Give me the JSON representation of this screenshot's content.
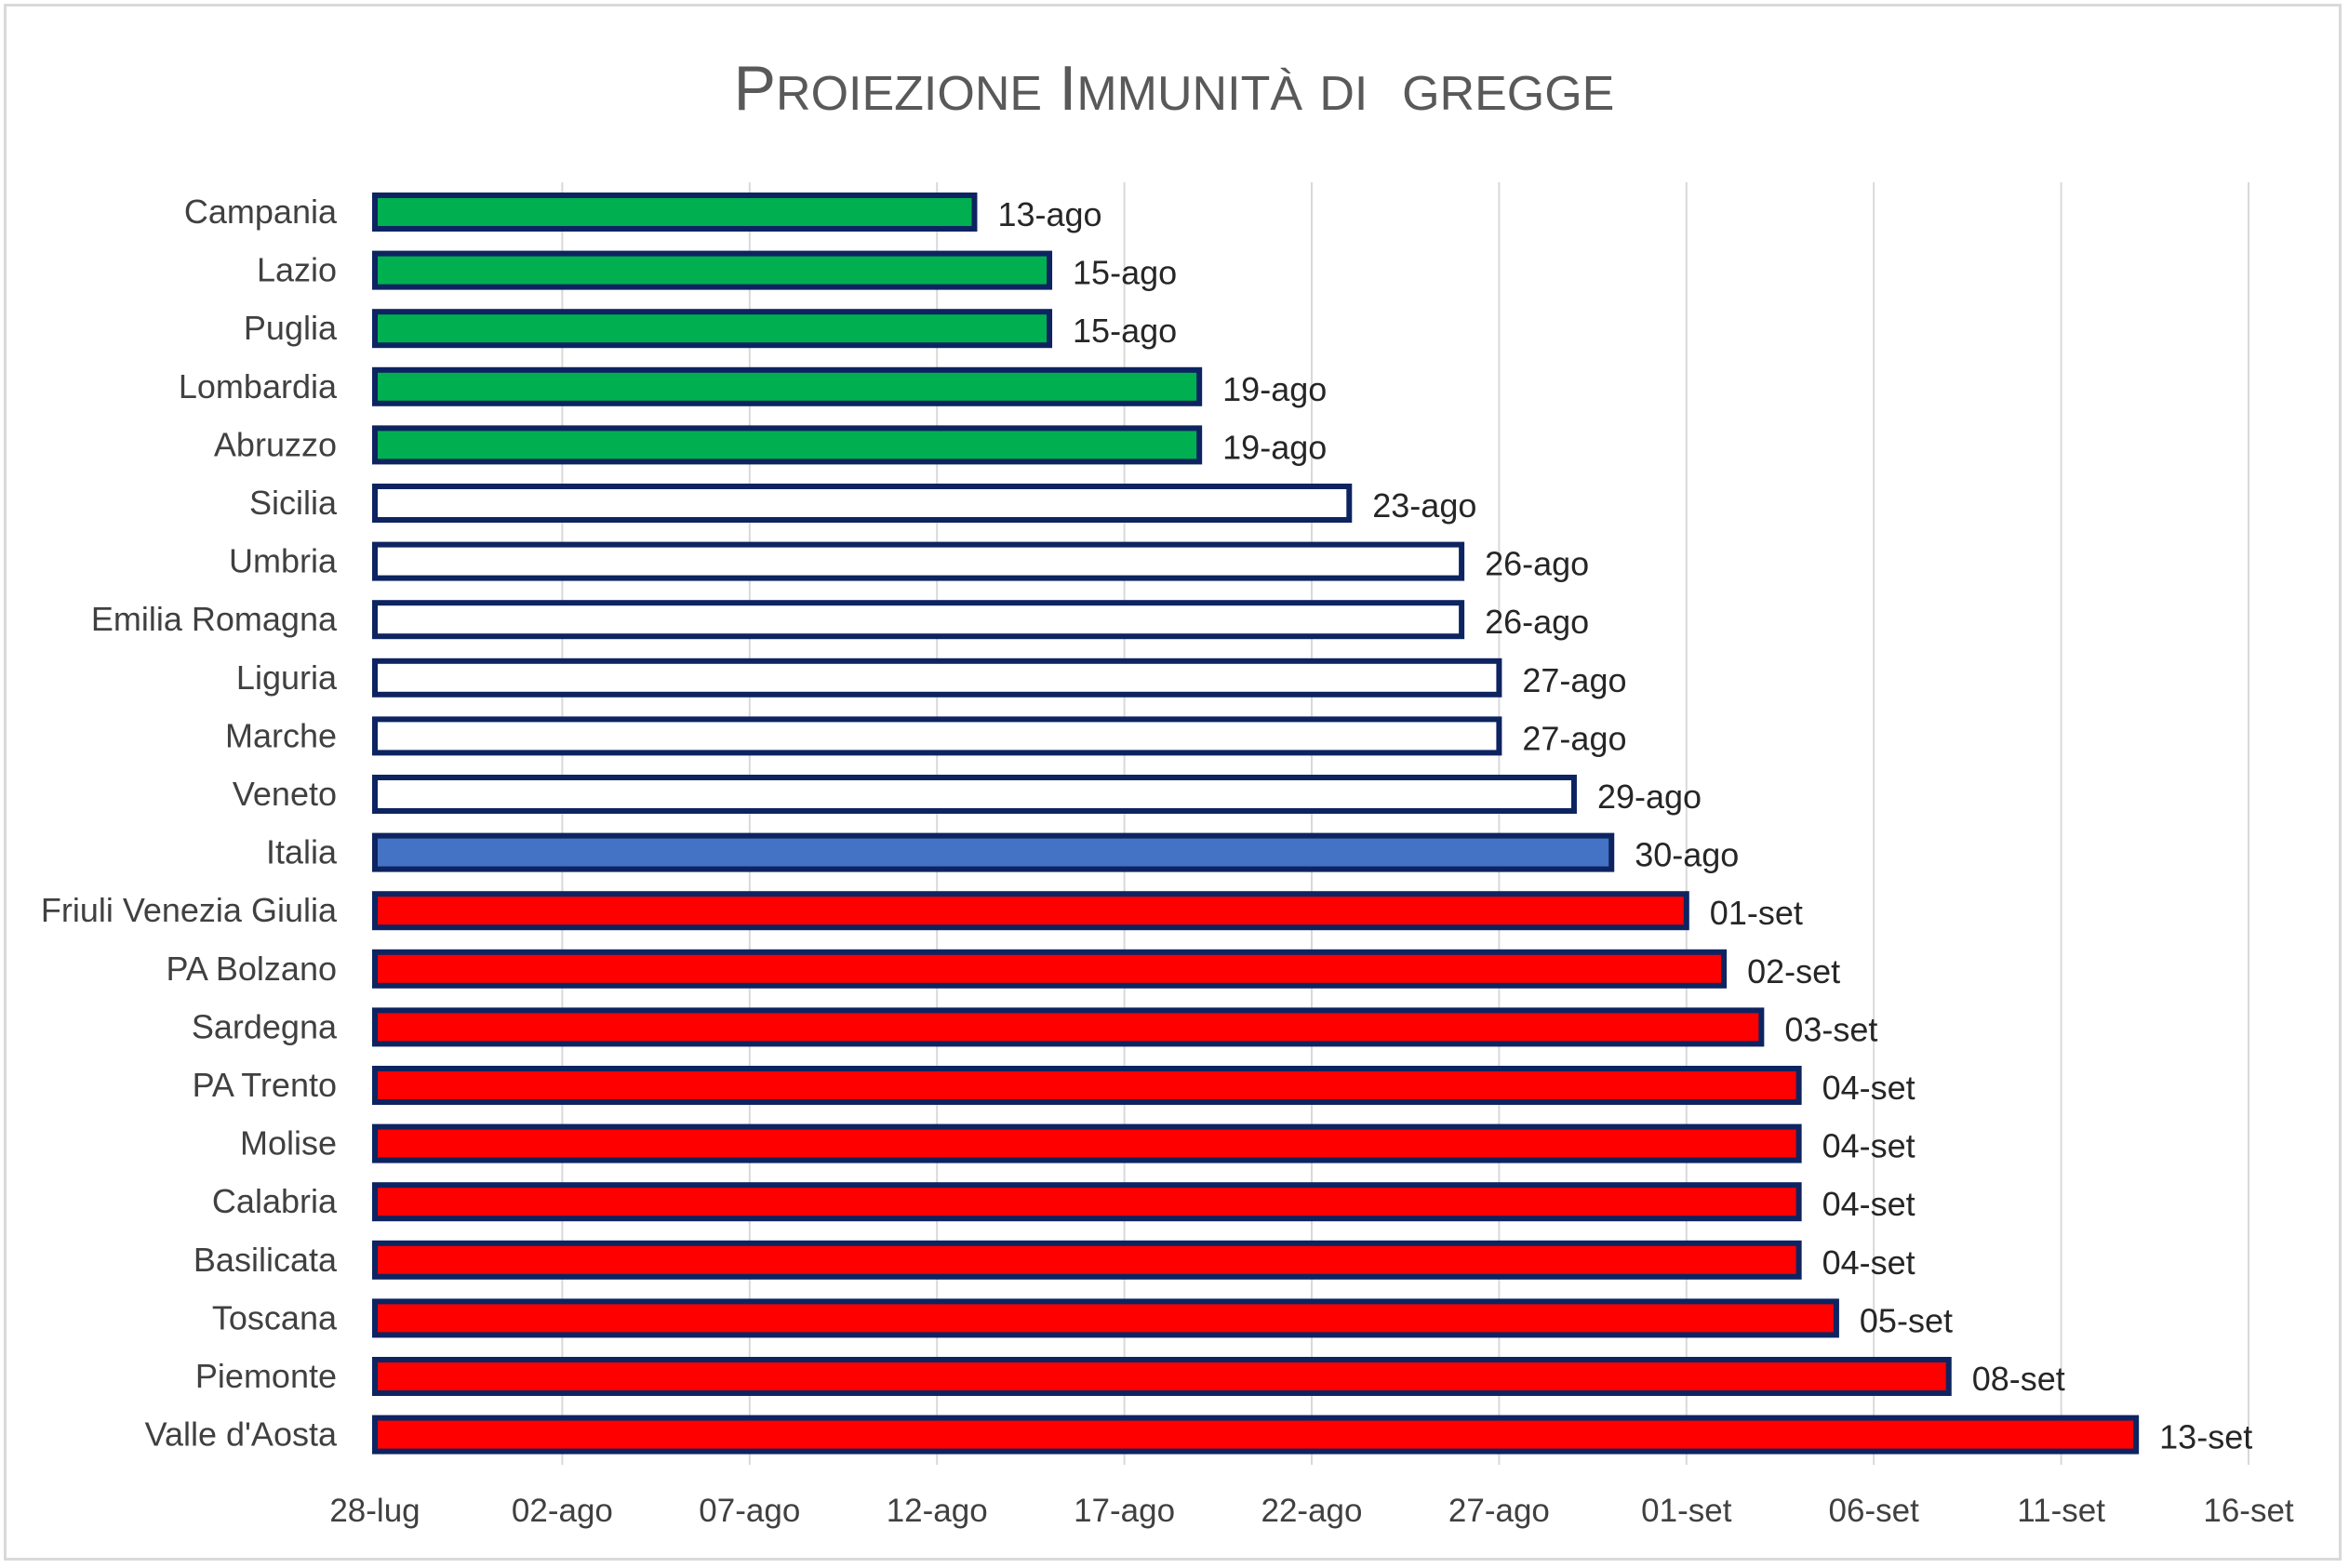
{
  "chart_data": {
    "type": "bar",
    "orientation": "horizontal",
    "title": "Proiezione Immunità di  gregge",
    "xlabel": "",
    "ylabel": "",
    "grid": true,
    "legend": "none",
    "xlim": [
      "2021-07-28",
      "2021-09-16"
    ],
    "x_ticks": [
      {
        "date": "2021-07-28",
        "label": "28-lug"
      },
      {
        "date": "2021-08-02",
        "label": "02-ago"
      },
      {
        "date": "2021-08-07",
        "label": "07-ago"
      },
      {
        "date": "2021-08-12",
        "label": "12-ago"
      },
      {
        "date": "2021-08-17",
        "label": "17-ago"
      },
      {
        "date": "2021-08-22",
        "label": "22-ago"
      },
      {
        "date": "2021-08-27",
        "label": "27-ago"
      },
      {
        "date": "2021-09-01",
        "label": "01-set"
      },
      {
        "date": "2021-09-06",
        "label": "06-set"
      },
      {
        "date": "2021-09-11",
        "label": "11-set"
      },
      {
        "date": "2021-09-16",
        "label": "16-set"
      }
    ],
    "colors": {
      "green": "#00b050",
      "white": "#ffffff",
      "blue": "#4472c4",
      "red": "#ff0000",
      "border": "#0d2461"
    },
    "bars": [
      {
        "category": "Campania",
        "date": "2021-08-13",
        "label": "13-ago",
        "color": "green"
      },
      {
        "category": "Lazio",
        "date": "2021-08-15",
        "label": "15-ago",
        "color": "green"
      },
      {
        "category": "Puglia",
        "date": "2021-08-15",
        "label": "15-ago",
        "color": "green"
      },
      {
        "category": "Lombardia",
        "date": "2021-08-19",
        "label": "19-ago",
        "color": "green"
      },
      {
        "category": "Abruzzo",
        "date": "2021-08-19",
        "label": "19-ago",
        "color": "green"
      },
      {
        "category": "Sicilia",
        "date": "2021-08-23",
        "label": "23-ago",
        "color": "white"
      },
      {
        "category": "Umbria",
        "date": "2021-08-26",
        "label": "26-ago",
        "color": "white"
      },
      {
        "category": "Emilia Romagna",
        "date": "2021-08-26",
        "label": "26-ago",
        "color": "white"
      },
      {
        "category": "Liguria",
        "date": "2021-08-27",
        "label": "27-ago",
        "color": "white"
      },
      {
        "category": "Marche",
        "date": "2021-08-27",
        "label": "27-ago",
        "color": "white"
      },
      {
        "category": "Veneto",
        "date": "2021-08-29",
        "label": "29-ago",
        "color": "white"
      },
      {
        "category": "Italia",
        "date": "2021-08-30",
        "label": "30-ago",
        "color": "blue"
      },
      {
        "category": "Friuli Venezia Giulia",
        "date": "2021-09-01",
        "label": "01-set",
        "color": "red"
      },
      {
        "category": "PA Bolzano",
        "date": "2021-09-02",
        "label": "02-set",
        "color": "red"
      },
      {
        "category": "Sardegna",
        "date": "2021-09-03",
        "label": "03-set",
        "color": "red"
      },
      {
        "category": "PA Trento",
        "date": "2021-09-04",
        "label": "04-set",
        "color": "red"
      },
      {
        "category": "Molise",
        "date": "2021-09-04",
        "label": "04-set",
        "color": "red"
      },
      {
        "category": "Calabria",
        "date": "2021-09-04",
        "label": "04-set",
        "color": "red"
      },
      {
        "category": "Basilicata",
        "date": "2021-09-04",
        "label": "04-set",
        "color": "red"
      },
      {
        "category": "Toscana",
        "date": "2021-09-05",
        "label": "05-set",
        "color": "red"
      },
      {
        "category": "Piemonte",
        "date": "2021-09-08",
        "label": "08-set",
        "color": "red"
      },
      {
        "category": "Valle d'Aosta",
        "date": "2021-09-13",
        "label": "13-set",
        "color": "red"
      }
    ]
  }
}
